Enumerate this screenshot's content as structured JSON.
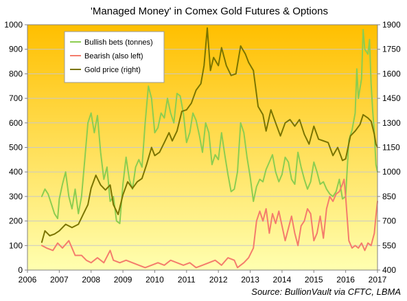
{
  "chart_data": {
    "type": "line",
    "title": "'Managed Money' in Comex Gold Futures & Options",
    "source": "Source: BullionVault via CFTC, LBMA",
    "x": {
      "ticks": [
        "2006",
        "2007",
        "2008",
        "2009",
        "2010",
        "2011",
        "2012",
        "2013",
        "2014",
        "2015",
        "2016",
        "2017"
      ],
      "range": [
        2006,
        2017
      ]
    },
    "y_left": {
      "range": [
        0,
        1000
      ],
      "ticks": [
        "0",
        "100",
        "200",
        "300",
        "400",
        "500",
        "600",
        "700",
        "800",
        "900",
        "1000"
      ]
    },
    "y_right": {
      "range": [
        400,
        1900
      ],
      "ticks": [
        "400",
        "550",
        "700",
        "850",
        "1000",
        "1150",
        "1300",
        "1450",
        "1600",
        "1750",
        "1900"
      ]
    },
    "legend": {
      "position": "top-left",
      "items": [
        {
          "label": "Bullish bets (tonnes)",
          "color": "#8ccd50"
        },
        {
          "label": "Bearish (also left)",
          "color": "#f47c6c"
        },
        {
          "label": "Gold price (right)",
          "color": "#7a7400"
        }
      ]
    },
    "grid": true,
    "background_gradient": [
      "#ffbf00",
      "#ffffb0"
    ],
    "series": [
      {
        "name": "Bullish bets (tonnes)",
        "axis": "left",
        "color": "#8ccd50",
        "points": [
          [
            2006.45,
            300
          ],
          [
            2006.55,
            330
          ],
          [
            2006.65,
            310
          ],
          [
            2006.75,
            270
          ],
          [
            2006.85,
            230
          ],
          [
            2006.95,
            210
          ],
          [
            2007.0,
            290
          ],
          [
            2007.1,
            350
          ],
          [
            2007.2,
            400
          ],
          [
            2007.3,
            300
          ],
          [
            2007.4,
            250
          ],
          [
            2007.5,
            330
          ],
          [
            2007.6,
            230
          ],
          [
            2007.7,
            300
          ],
          [
            2007.8,
            450
          ],
          [
            2007.9,
            600
          ],
          [
            2008.0,
            640
          ],
          [
            2008.1,
            560
          ],
          [
            2008.2,
            630
          ],
          [
            2008.3,
            480
          ],
          [
            2008.4,
            370
          ],
          [
            2008.5,
            420
          ],
          [
            2008.6,
            280
          ],
          [
            2008.7,
            300
          ],
          [
            2008.8,
            200
          ],
          [
            2008.9,
            190
          ],
          [
            2009.0,
            350
          ],
          [
            2009.1,
            460
          ],
          [
            2009.2,
            370
          ],
          [
            2009.3,
            330
          ],
          [
            2009.4,
            420
          ],
          [
            2009.5,
            450
          ],
          [
            2009.6,
            420
          ],
          [
            2009.7,
            600
          ],
          [
            2009.8,
            750
          ],
          [
            2009.9,
            700
          ],
          [
            2010.0,
            560
          ],
          [
            2010.1,
            580
          ],
          [
            2010.2,
            640
          ],
          [
            2010.3,
            620
          ],
          [
            2010.4,
            700
          ],
          [
            2010.5,
            640
          ],
          [
            2010.6,
            600
          ],
          [
            2010.7,
            720
          ],
          [
            2010.8,
            710
          ],
          [
            2010.9,
            640
          ],
          [
            2011.0,
            520
          ],
          [
            2011.1,
            560
          ],
          [
            2011.2,
            640
          ],
          [
            2011.3,
            610
          ],
          [
            2011.4,
            550
          ],
          [
            2011.5,
            480
          ],
          [
            2011.6,
            600
          ],
          [
            2011.7,
            560
          ],
          [
            2011.8,
            430
          ],
          [
            2011.9,
            470
          ],
          [
            2012.0,
            450
          ],
          [
            2012.1,
            560
          ],
          [
            2012.2,
            470
          ],
          [
            2012.3,
            390
          ],
          [
            2012.4,
            320
          ],
          [
            2012.5,
            330
          ],
          [
            2012.6,
            400
          ],
          [
            2012.7,
            600
          ],
          [
            2012.8,
            560
          ],
          [
            2012.9,
            460
          ],
          [
            2013.0,
            380
          ],
          [
            2013.1,
            280
          ],
          [
            2013.2,
            340
          ],
          [
            2013.3,
            370
          ],
          [
            2013.4,
            360
          ],
          [
            2013.5,
            410
          ],
          [
            2013.6,
            440
          ],
          [
            2013.7,
            470
          ],
          [
            2013.8,
            400
          ],
          [
            2013.9,
            360
          ],
          [
            2014.0,
            390
          ],
          [
            2014.1,
            460
          ],
          [
            2014.2,
            440
          ],
          [
            2014.3,
            370
          ],
          [
            2014.4,
            350
          ],
          [
            2014.5,
            480
          ],
          [
            2014.6,
            420
          ],
          [
            2014.7,
            370
          ],
          [
            2014.8,
            330
          ],
          [
            2014.9,
            360
          ],
          [
            2015.0,
            440
          ],
          [
            2015.1,
            400
          ],
          [
            2015.2,
            350
          ],
          [
            2015.3,
            360
          ],
          [
            2015.4,
            330
          ],
          [
            2015.5,
            310
          ],
          [
            2015.6,
            300
          ],
          [
            2015.7,
            320
          ],
          [
            2015.8,
            370
          ],
          [
            2015.9,
            290
          ],
          [
            2016.0,
            300
          ],
          [
            2016.1,
            530
          ],
          [
            2016.2,
            570
          ],
          [
            2016.3,
            640
          ],
          [
            2016.35,
            820
          ],
          [
            2016.4,
            700
          ],
          [
            2016.5,
            780
          ],
          [
            2016.55,
            980
          ],
          [
            2016.6,
            900
          ],
          [
            2016.7,
            880
          ],
          [
            2016.75,
            940
          ],
          [
            2016.8,
            760
          ],
          [
            2016.85,
            650
          ],
          [
            2016.9,
            560
          ],
          [
            2016.95,
            430
          ],
          [
            2017.0,
            400
          ]
        ]
      },
      {
        "name": "Bearish (also left)",
        "axis": "left",
        "color": "#f47c6c",
        "points": [
          [
            2006.45,
            100
          ],
          [
            2006.6,
            90
          ],
          [
            2006.8,
            80
          ],
          [
            2006.95,
            110
          ],
          [
            2007.1,
            90
          ],
          [
            2007.3,
            120
          ],
          [
            2007.5,
            60
          ],
          [
            2007.7,
            60
          ],
          [
            2007.85,
            40
          ],
          [
            2008.0,
            30
          ],
          [
            2008.2,
            50
          ],
          [
            2008.4,
            30
          ],
          [
            2008.6,
            80
          ],
          [
            2008.7,
            40
          ],
          [
            2008.9,
            30
          ],
          [
            2009.1,
            40
          ],
          [
            2009.3,
            30
          ],
          [
            2009.5,
            20
          ],
          [
            2009.7,
            10
          ],
          [
            2009.9,
            20
          ],
          [
            2010.1,
            30
          ],
          [
            2010.3,
            20
          ],
          [
            2010.5,
            40
          ],
          [
            2010.7,
            30
          ],
          [
            2010.9,
            20
          ],
          [
            2011.1,
            30
          ],
          [
            2011.3,
            10
          ],
          [
            2011.5,
            20
          ],
          [
            2011.7,
            30
          ],
          [
            2011.9,
            40
          ],
          [
            2012.1,
            20
          ],
          [
            2012.3,
            50
          ],
          [
            2012.5,
            40
          ],
          [
            2012.6,
            10
          ],
          [
            2012.8,
            30
          ],
          [
            2012.95,
            50
          ],
          [
            2013.1,
            90
          ],
          [
            2013.2,
            200
          ],
          [
            2013.3,
            240
          ],
          [
            2013.4,
            200
          ],
          [
            2013.5,
            250
          ],
          [
            2013.6,
            150
          ],
          [
            2013.7,
            230
          ],
          [
            2013.8,
            190
          ],
          [
            2013.9,
            240
          ],
          [
            2014.0,
            180
          ],
          [
            2014.1,
            120
          ],
          [
            2014.2,
            170
          ],
          [
            2014.3,
            220
          ],
          [
            2014.4,
            150
          ],
          [
            2014.5,
            100
          ],
          [
            2014.6,
            180
          ],
          [
            2014.7,
            200
          ],
          [
            2014.8,
            250
          ],
          [
            2014.9,
            230
          ],
          [
            2015.0,
            120
          ],
          [
            2015.1,
            150
          ],
          [
            2015.2,
            220
          ],
          [
            2015.3,
            130
          ],
          [
            2015.4,
            250
          ],
          [
            2015.5,
            300
          ],
          [
            2015.6,
            280
          ],
          [
            2015.7,
            310
          ],
          [
            2015.8,
            320
          ],
          [
            2015.9,
            350
          ],
          [
            2015.95,
            370
          ],
          [
            2016.0,
            300
          ],
          [
            2016.1,
            120
          ],
          [
            2016.2,
            90
          ],
          [
            2016.3,
            100
          ],
          [
            2016.4,
            90
          ],
          [
            2016.5,
            110
          ],
          [
            2016.6,
            80
          ],
          [
            2016.7,
            110
          ],
          [
            2016.8,
            100
          ],
          [
            2016.9,
            150
          ],
          [
            2016.95,
            220
          ],
          [
            2017.0,
            280
          ]
        ]
      },
      {
        "name": "Gold price (right)",
        "axis": "right",
        "color": "#7a7400",
        "points": [
          [
            2006.45,
            570
          ],
          [
            2006.55,
            640
          ],
          [
            2006.7,
            610
          ],
          [
            2006.85,
            620
          ],
          [
            2007.0,
            640
          ],
          [
            2007.2,
            680
          ],
          [
            2007.4,
            660
          ],
          [
            2007.6,
            680
          ],
          [
            2007.75,
            740
          ],
          [
            2007.9,
            800
          ],
          [
            2008.0,
            900
          ],
          [
            2008.15,
            980
          ],
          [
            2008.3,
            920
          ],
          [
            2008.45,
            890
          ],
          [
            2008.6,
            920
          ],
          [
            2008.7,
            800
          ],
          [
            2008.85,
            740
          ],
          [
            2009.0,
            860
          ],
          [
            2009.15,
            940
          ],
          [
            2009.3,
            900
          ],
          [
            2009.45,
            940
          ],
          [
            2009.6,
            960
          ],
          [
            2009.75,
            1050
          ],
          [
            2009.9,
            1150
          ],
          [
            2010.0,
            1100
          ],
          [
            2010.15,
            1120
          ],
          [
            2010.3,
            1180
          ],
          [
            2010.45,
            1240
          ],
          [
            2010.55,
            1190
          ],
          [
            2010.7,
            1250
          ],
          [
            2010.85,
            1370
          ],
          [
            2011.0,
            1380
          ],
          [
            2011.15,
            1420
          ],
          [
            2011.3,
            1500
          ],
          [
            2011.45,
            1540
          ],
          [
            2011.55,
            1650
          ],
          [
            2011.65,
            1880
          ],
          [
            2011.75,
            1620
          ],
          [
            2011.85,
            1700
          ],
          [
            2012.0,
            1650
          ],
          [
            2012.1,
            1760
          ],
          [
            2012.25,
            1650
          ],
          [
            2012.4,
            1590
          ],
          [
            2012.55,
            1600
          ],
          [
            2012.7,
            1770
          ],
          [
            2012.85,
            1720
          ],
          [
            2012.95,
            1670
          ],
          [
            2013.1,
            1620
          ],
          [
            2013.25,
            1400
          ],
          [
            2013.4,
            1350
          ],
          [
            2013.5,
            1250
          ],
          [
            2013.65,
            1380
          ],
          [
            2013.8,
            1300
          ],
          [
            2013.95,
            1220
          ],
          [
            2014.1,
            1300
          ],
          [
            2014.25,
            1320
          ],
          [
            2014.4,
            1280
          ],
          [
            2014.55,
            1320
          ],
          [
            2014.7,
            1230
          ],
          [
            2014.85,
            1170
          ],
          [
            2015.0,
            1280
          ],
          [
            2015.15,
            1200
          ],
          [
            2015.3,
            1190
          ],
          [
            2015.45,
            1180
          ],
          [
            2015.6,
            1100
          ],
          [
            2015.75,
            1150
          ],
          [
            2015.9,
            1070
          ],
          [
            2016.0,
            1080
          ],
          [
            2016.15,
            1220
          ],
          [
            2016.3,
            1250
          ],
          [
            2016.45,
            1290
          ],
          [
            2016.55,
            1350
          ],
          [
            2016.7,
            1330
          ],
          [
            2016.8,
            1310
          ],
          [
            2016.9,
            1230
          ],
          [
            2016.95,
            1170
          ],
          [
            2017.0,
            1150
          ]
        ]
      }
    ]
  }
}
